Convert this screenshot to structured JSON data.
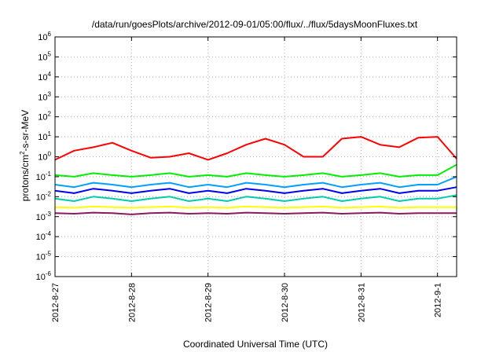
{
  "chart_data": {
    "type": "line",
    "title": "/data/run/goesPlots/archive/2012-09-01/05:00/flux/../flux/5daysMoonFluxes.txt",
    "xlabel": "Coordinated Universal Time (UTC)",
    "ylabel": "protons/cm2-s-sr-MeV",
    "ylabel_main": "protons/cm",
    "ylabel_sup": "2",
    "ylabel_rest": "-s-sr-MeV",
    "y_scale": "log",
    "ylim": [
      1e-06,
      1000000.0
    ],
    "xlim": [
      "2012-08-27",
      "2012-09-01 06:00"
    ],
    "grid": true,
    "legend": "none",
    "x_ticks": [
      "2012-8-27",
      "2012-8-28",
      "2012-8-29",
      "2012-8-30",
      "2012-8-31",
      "2012-9-1"
    ],
    "y_ticks": [
      {
        "base": "10",
        "exp": "-6"
      },
      {
        "base": "10",
        "exp": "-5"
      },
      {
        "base": "10",
        "exp": "-4"
      },
      {
        "base": "10",
        "exp": "-3"
      },
      {
        "base": "10",
        "exp": "-2"
      },
      {
        "base": "10",
        "exp": "-1"
      },
      {
        "base": "10",
        "exp": "0"
      },
      {
        "base": "10",
        "exp": "1"
      },
      {
        "base": "10",
        "exp": "2"
      },
      {
        "base": "10",
        "exp": "3"
      },
      {
        "base": "10",
        "exp": "4"
      },
      {
        "base": "10",
        "exp": "5"
      },
      {
        "base": "10",
        "exp": "6"
      }
    ],
    "x": [
      "2012-08-27 00:00",
      "2012-08-27 06:00",
      "2012-08-27 12:00",
      "2012-08-27 18:00",
      "2012-08-28 00:00",
      "2012-08-28 06:00",
      "2012-08-28 12:00",
      "2012-08-28 18:00",
      "2012-08-29 00:00",
      "2012-08-29 06:00",
      "2012-08-29 12:00",
      "2012-08-29 18:00",
      "2012-08-30 00:00",
      "2012-08-30 06:00",
      "2012-08-30 12:00",
      "2012-08-30 18:00",
      "2012-08-31 00:00",
      "2012-08-31 06:00",
      "2012-08-31 12:00",
      "2012-08-31 18:00",
      "2012-09-01 00:00",
      "2012-09-01 06:00"
    ],
    "series": [
      {
        "color": "#ff0000",
        "values": [
          0.7,
          2.0,
          3.0,
          5.0,
          2.0,
          0.9,
          1.0,
          1.5,
          0.7,
          1.5,
          4.0,
          8.0,
          4.0,
          1.0,
          1.0,
          8.0,
          10.0,
          4.0,
          3.0,
          9.0,
          10.0,
          0.8
        ]
      },
      {
        "color": "#00ee00",
        "values": [
          0.12,
          0.1,
          0.15,
          0.12,
          0.1,
          0.12,
          0.15,
          0.1,
          0.12,
          0.1,
          0.15,
          0.12,
          0.1,
          0.12,
          0.15,
          0.1,
          0.12,
          0.15,
          0.1,
          0.12,
          0.12,
          0.4
        ]
      },
      {
        "color": "#00a0ff",
        "values": [
          0.04,
          0.03,
          0.05,
          0.04,
          0.03,
          0.04,
          0.05,
          0.03,
          0.04,
          0.03,
          0.05,
          0.04,
          0.03,
          0.04,
          0.05,
          0.03,
          0.04,
          0.05,
          0.03,
          0.04,
          0.04,
          0.1
        ]
      },
      {
        "color": "#0000ee",
        "values": [
          0.02,
          0.015,
          0.025,
          0.02,
          0.015,
          0.02,
          0.025,
          0.015,
          0.02,
          0.015,
          0.025,
          0.02,
          0.015,
          0.02,
          0.025,
          0.015,
          0.02,
          0.025,
          0.015,
          0.02,
          0.02,
          0.03
        ]
      },
      {
        "color": "#00ccaa",
        "values": [
          0.008,
          0.006,
          0.01,
          0.008,
          0.006,
          0.008,
          0.01,
          0.006,
          0.008,
          0.006,
          0.01,
          0.008,
          0.006,
          0.008,
          0.01,
          0.006,
          0.008,
          0.01,
          0.006,
          0.008,
          0.008,
          0.012
        ]
      },
      {
        "color": "#ffff00",
        "values": [
          0.003,
          0.0028,
          0.0032,
          0.003,
          0.0028,
          0.003,
          0.0032,
          0.0028,
          0.003,
          0.0028,
          0.0032,
          0.003,
          0.0028,
          0.003,
          0.0032,
          0.0028,
          0.003,
          0.0032,
          0.0028,
          0.003,
          0.003,
          0.003
        ]
      },
      {
        "color": "#8b1a5a",
        "values": [
          0.0015,
          0.0014,
          0.0016,
          0.0015,
          0.0013,
          0.0015,
          0.0016,
          0.0014,
          0.0015,
          0.0014,
          0.0016,
          0.0015,
          0.0014,
          0.0015,
          0.0016,
          0.0014,
          0.0015,
          0.0016,
          0.0014,
          0.0015,
          0.0015,
          0.0015
        ]
      }
    ]
  }
}
